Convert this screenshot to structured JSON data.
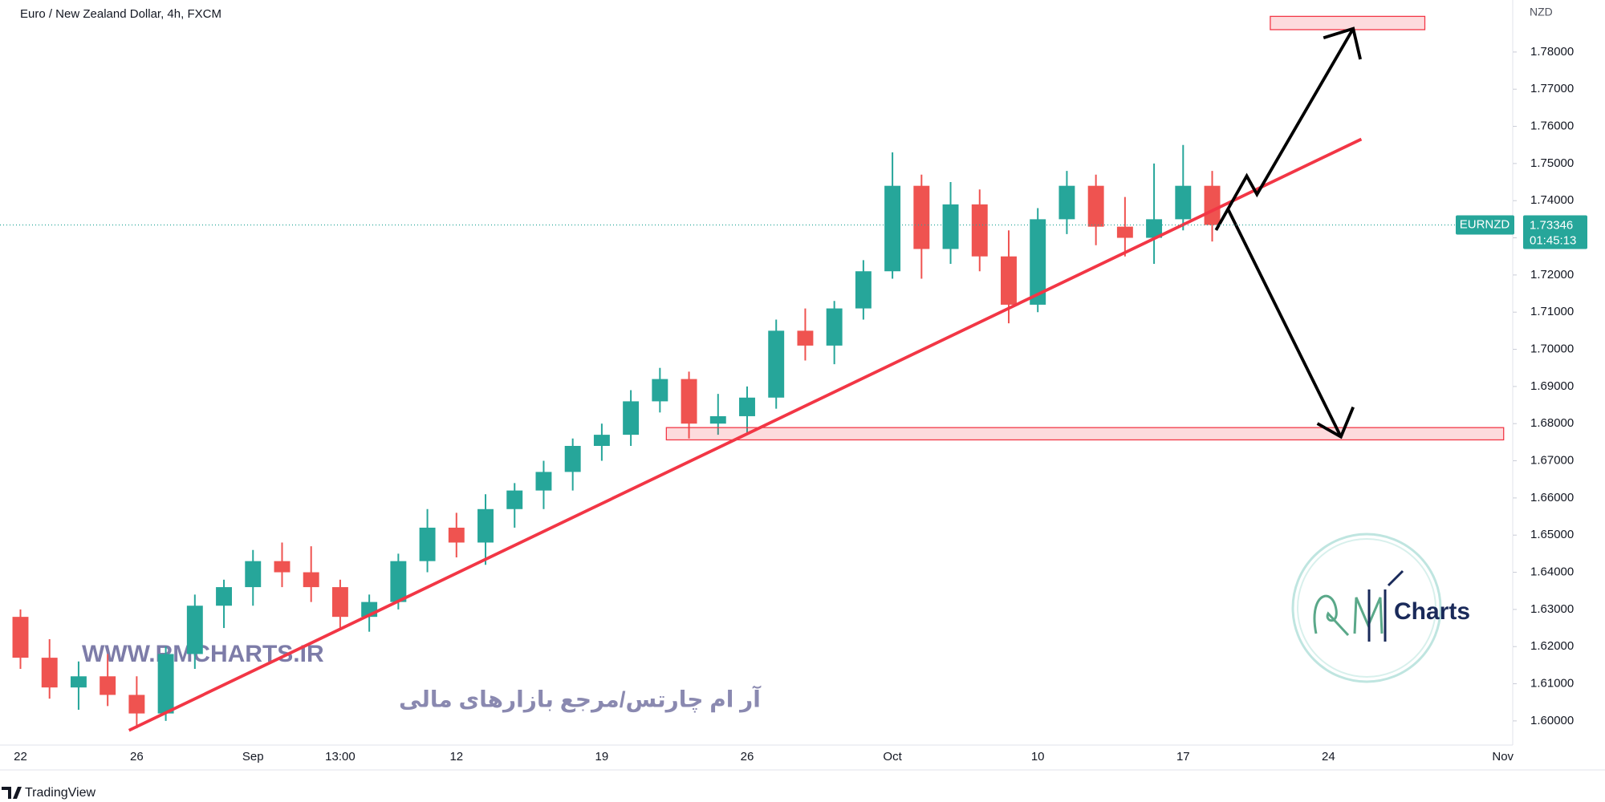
{
  "chart_data": {
    "type": "candlestick",
    "title": "Euro / New Zealand Dollar, 4h, FXCM",
    "y_axis_label": "NZD",
    "symbol": "EURNZD",
    "last_price": {
      "value": 1.73346,
      "label": "1.73346"
    },
    "countdown": "01:45:13",
    "up_color": "#26a69a",
    "down_color": "#ef5350",
    "categories": [
      "22",
      null,
      null,
      null,
      "26",
      null,
      null,
      null,
      "Sep",
      null,
      null,
      "13:00",
      null,
      null,
      null,
      "12",
      null,
      null,
      null,
      null,
      "19",
      null,
      null,
      null,
      null,
      "26",
      null,
      null,
      null,
      null,
      "Oct",
      null,
      null,
      null,
      null,
      "10",
      null,
      null,
      null,
      null,
      "17",
      null,
      null,
      null,
      null,
      "24",
      null,
      null,
      null,
      null,
      null,
      "Nov"
    ],
    "open": [
      1.628,
      1.617,
      1.609,
      1.612,
      1.607,
      1.602,
      1.618,
      1.631,
      1.636,
      1.643,
      1.64,
      1.636,
      1.628,
      1.632,
      1.643,
      1.652,
      1.648,
      1.657,
      1.662,
      1.667,
      1.674,
      1.677,
      1.686,
      1.692,
      1.68,
      1.682,
      1.687,
      1.705,
      1.701,
      1.711,
      1.721,
      1.744,
      1.727,
      1.739,
      1.725,
      1.712,
      1.735,
      1.744,
      1.733,
      1.73,
      1.735,
      1.744,
      null,
      null,
      null,
      null,
      null,
      null,
      null,
      null,
      null,
      null
    ],
    "high": [
      1.63,
      1.622,
      1.616,
      1.618,
      1.612,
      1.62,
      1.634,
      1.638,
      1.646,
      1.648,
      1.647,
      1.638,
      1.634,
      1.645,
      1.657,
      1.656,
      1.661,
      1.664,
      1.67,
      1.676,
      1.68,
      1.689,
      1.695,
      1.694,
      1.688,
      1.69,
      1.708,
      1.711,
      1.713,
      1.724,
      1.753,
      1.747,
      1.745,
      1.743,
      1.732,
      1.738,
      1.748,
      1.747,
      1.741,
      1.75,
      1.755,
      1.748,
      null,
      null,
      null,
      null,
      null,
      null,
      null,
      null,
      null,
      null
    ],
    "low": [
      1.614,
      1.606,
      1.603,
      1.604,
      1.598,
      1.6,
      1.614,
      1.625,
      1.631,
      1.636,
      1.632,
      1.625,
      1.624,
      1.63,
      1.64,
      1.644,
      1.642,
      1.652,
      1.657,
      1.662,
      1.67,
      1.674,
      1.683,
      1.676,
      1.677,
      1.677,
      1.684,
      1.697,
      1.696,
      1.708,
      1.719,
      1.719,
      1.723,
      1.721,
      1.707,
      1.71,
      1.731,
      1.728,
      1.725,
      1.723,
      1.732,
      1.729,
      null,
      null,
      null,
      null,
      null,
      null,
      null,
      null,
      null,
      null
    ],
    "close": [
      1.617,
      1.609,
      1.612,
      1.607,
      1.602,
      1.618,
      1.631,
      1.636,
      1.643,
      1.64,
      1.636,
      1.628,
      1.632,
      1.643,
      1.652,
      1.648,
      1.657,
      1.662,
      1.667,
      1.674,
      1.677,
      1.686,
      1.692,
      1.68,
      1.682,
      1.687,
      1.705,
      1.701,
      1.711,
      1.721,
      1.744,
      1.727,
      1.739,
      1.725,
      1.712,
      1.735,
      1.744,
      1.733,
      1.73,
      1.735,
      1.744,
      1.73346,
      null,
      null,
      null,
      null,
      null,
      null,
      null,
      null,
      null,
      null
    ],
    "ylim": [
      1.5935,
      1.794
    ],
    "yticks": [
      {
        "value": 1.6,
        "label": "1.60000"
      },
      {
        "value": 1.61,
        "label": "1.61000"
      },
      {
        "value": 1.62,
        "label": "1.62000"
      },
      {
        "value": 1.63,
        "label": "1.63000"
      },
      {
        "value": 1.64,
        "label": "1.64000"
      },
      {
        "value": 1.65,
        "label": "1.65000"
      },
      {
        "value": 1.66,
        "label": "1.66000"
      },
      {
        "value": 1.67,
        "label": "1.67000"
      },
      {
        "value": 1.68,
        "label": "1.68000"
      },
      {
        "value": 1.69,
        "label": "1.69000"
      },
      {
        "value": 1.7,
        "label": "1.70000"
      },
      {
        "value": 1.71,
        "label": "1.71000"
      },
      {
        "value": 1.72,
        "label": "1.72000"
      },
      {
        "value": 1.73,
        "label": "1.73000"
      },
      {
        "value": 1.74,
        "label": "1.74000"
      },
      {
        "value": 1.75,
        "label": "1.75000"
      },
      {
        "value": 1.76,
        "label": "1.76000"
      },
      {
        "value": 1.77,
        "label": "1.77000"
      },
      {
        "value": 1.78,
        "label": "1.78000"
      }
    ],
    "watermark": {
      "url": "WWW.RMCHARTS.IR",
      "tagline": "آر ام چارتس/مرجع بازارهای مالی",
      "logo_text": "Charts"
    },
    "footer": "TradingView"
  }
}
